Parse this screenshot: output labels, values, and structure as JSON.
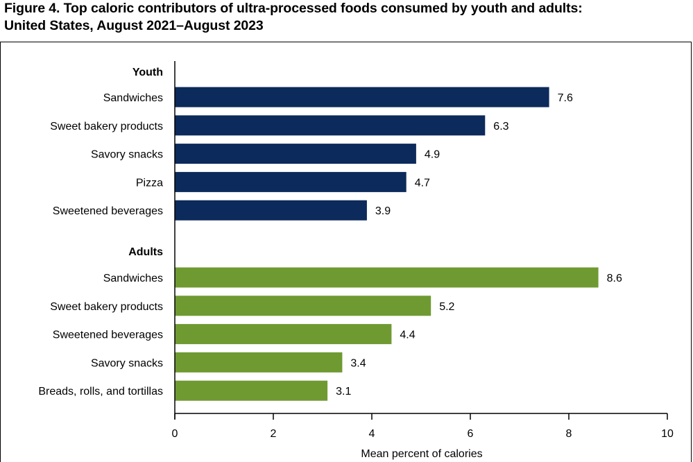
{
  "figure": {
    "title_line1": "Figure 4. Top caloric contributors of ultra-processed foods consumed by youth and adults:",
    "title_line2": "United States, August 2021–August 2023"
  },
  "chart_data": {
    "type": "bar",
    "orientation": "horizontal",
    "xlabel": "Mean percent of calories",
    "xlim": [
      0,
      10
    ],
    "xticks": [
      0,
      2,
      4,
      6,
      8,
      10
    ],
    "groups": [
      {
        "name": "Youth",
        "color": "#0c2a5b",
        "categories": [
          "Sandwiches",
          "Sweet bakery products",
          "Savory snacks",
          "Pizza",
          "Sweetened beverages"
        ],
        "values": [
          7.6,
          6.3,
          4.9,
          4.7,
          3.9
        ],
        "value_labels": [
          "7.6",
          "6.3",
          "4.9",
          "4.7",
          "3.9"
        ]
      },
      {
        "name": "Adults",
        "color": "#6f9a32",
        "categories": [
          "Sandwiches",
          "Sweet bakery products",
          "Sweetened beverages",
          "Savory snacks",
          "Breads, rolls, and tortillas"
        ],
        "values": [
          8.6,
          5.2,
          4.4,
          3.4,
          3.1
        ],
        "value_labels": [
          "8.6",
          "5.2",
          "4.4",
          "3.4",
          "3.1"
        ]
      }
    ]
  }
}
